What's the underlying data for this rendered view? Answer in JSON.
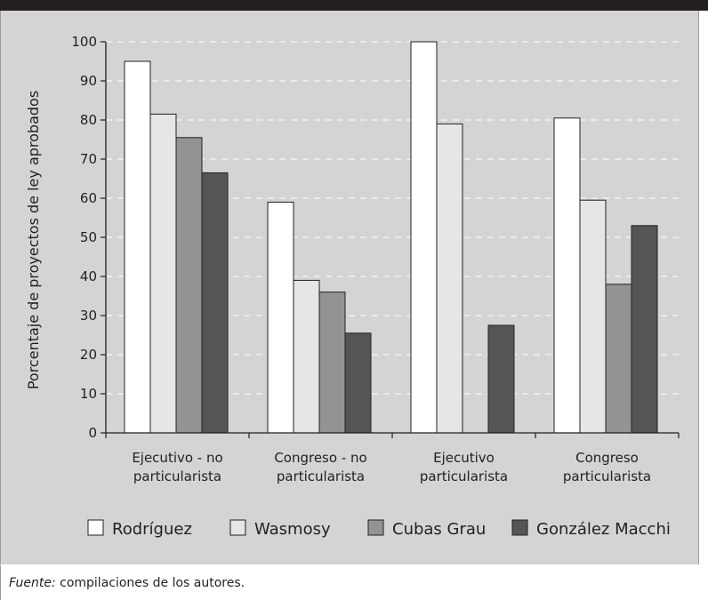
{
  "chart_data": {
    "type": "bar",
    "categories": [
      [
        "Ejecutivo - no",
        "particularista"
      ],
      [
        "Congreso - no",
        "particularista"
      ],
      [
        "Ejecutivo",
        "particularista"
      ],
      [
        "Congreso",
        "particularista"
      ]
    ],
    "series": [
      {
        "name": "Rodríguez",
        "color": "#ffffff",
        "values": [
          95,
          59,
          100,
          80.5
        ]
      },
      {
        "name": "Wasmosy",
        "color": "#e6e6e6",
        "values": [
          81.5,
          39,
          79,
          59.5
        ]
      },
      {
        "name": "Cubas Grau",
        "color": "#939393",
        "values": [
          75.5,
          36,
          0,
          38
        ]
      },
      {
        "name": "González Macchi",
        "color": "#555557",
        "values": [
          66.5,
          25.5,
          27.5,
          53
        ]
      }
    ],
    "ylabel": "Porcentaje de proyectos de ley aprobados",
    "xlabel": "",
    "ylim": [
      0,
      100
    ],
    "yticks": [
      0,
      10,
      20,
      30,
      40,
      50,
      60,
      70,
      80,
      90,
      100
    ],
    "grid": "dashed horizontal",
    "legend": "bottom"
  },
  "source": {
    "label": "Fuente:",
    "text": " compilaciones de los autores."
  }
}
